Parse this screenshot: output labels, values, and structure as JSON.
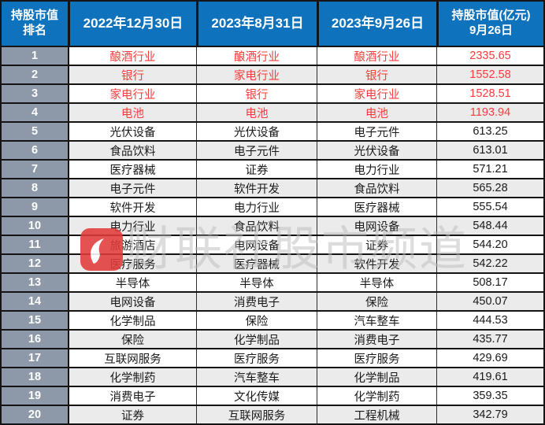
{
  "chart_data": {
    "type": "table",
    "columns": [
      "持股市值排名",
      "2022年12月30日",
      "2023年8月31日",
      "2023年9月26日",
      "持股市值(亿元)9月26日"
    ],
    "rows": [
      [
        "1",
        "酿酒行业",
        "酿酒行业",
        "酿酒行业",
        "2335.65"
      ],
      [
        "2",
        "银行",
        "家电行业",
        "银行",
        "1552.58"
      ],
      [
        "3",
        "家电行业",
        "银行",
        "家电行业",
        "1528.51"
      ],
      [
        "4",
        "电池",
        "电池",
        "电池",
        "1193.94"
      ],
      [
        "5",
        "光伏设备",
        "光伏设备",
        "电子元件",
        "613.25"
      ],
      [
        "6",
        "食品饮料",
        "电子元件",
        "光伏设备",
        "613.01"
      ],
      [
        "7",
        "医疗器械",
        "证券",
        "电力行业",
        "571.21"
      ],
      [
        "8",
        "电子元件",
        "软件开发",
        "食品饮料",
        "565.28"
      ],
      [
        "9",
        "软件开发",
        "电力行业",
        "医疗器械",
        "555.54"
      ],
      [
        "10",
        "电力行业",
        "食品饮料",
        "电网设备",
        "548.44"
      ],
      [
        "11",
        "旅游酒店",
        "电网设备",
        "证券",
        "544.20"
      ],
      [
        "12",
        "医疗服务",
        "医疗器械",
        "软件开发",
        "542.22"
      ],
      [
        "13",
        "半导体",
        "半导体",
        "半导体",
        "508.17"
      ],
      [
        "14",
        "电网设备",
        "消费电子",
        "保险",
        "450.07"
      ],
      [
        "15",
        "化学制品",
        "保险",
        "汽车整车",
        "444.53"
      ],
      [
        "16",
        "保险",
        "化学制品",
        "消费电子",
        "435.77"
      ],
      [
        "17",
        "互联网服务",
        "医疗服务",
        "医疗服务",
        "429.69"
      ],
      [
        "18",
        "化学制药",
        "汽车整车",
        "化学制品",
        "419.61"
      ],
      [
        "19",
        "消费电子",
        "文化传媒",
        "化学制药",
        "359.35"
      ],
      [
        "20",
        "证券",
        "互联网服务",
        "工程机械",
        "342.79"
      ]
    ]
  },
  "table": {
    "header": {
      "rank_line1": "持股市值",
      "rank_line2": "排名",
      "date1": "2022年12月30日",
      "date2": "2023年8月31日",
      "date3": "2023年9月26日",
      "value_line1": "持股市值(亿元)",
      "value_line2": "9月26日"
    },
    "highlight_rows": [
      0,
      1,
      2,
      3
    ]
  },
  "watermark": {
    "logo": "cailianshe-logo",
    "text": "财联社股市频道"
  },
  "colors": {
    "header_bg": "#0f72bc",
    "header_text": "#ffffff",
    "rank_bg": "#8d99a9",
    "row_bg": "#ffffff",
    "row_alt_bg": "#ebebeb",
    "highlight_red": "#f93b3b",
    "body_text": "#1a1a1a",
    "grid_line": "#141414",
    "watermark_red": "#e23b3b",
    "watermark_gray": "#bcbcbc"
  }
}
